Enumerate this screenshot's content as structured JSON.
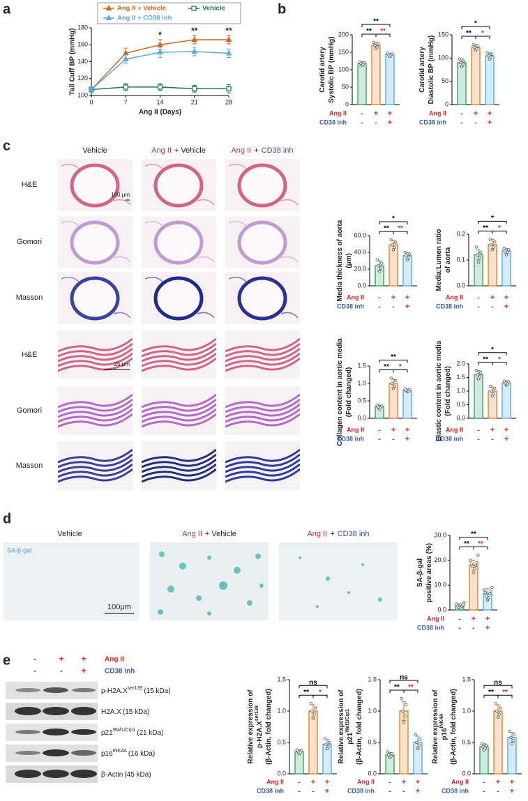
{
  "panels": [
    "a",
    "b",
    "c",
    "d",
    "e"
  ],
  "histology": {
    "columns": [
      [
        {
          "text": "Vehicle"
        }
      ],
      [
        {
          "text": "Ang II",
          "color": "#c0303a"
        },
        {
          "text": "+ Vehicle"
        }
      ],
      [
        {
          "text": "Ang II",
          "color": "#c0303a"
        },
        {
          "text": "+"
        },
        {
          "text": "CD38 inh",
          "color": "#3b4fa8"
        }
      ]
    ],
    "rows": [
      "H&E",
      "Gomori",
      "Masson",
      "H&E",
      "Gomori",
      "Masson"
    ],
    "scale_bars": [
      "100 μm",
      "25 μm"
    ]
  },
  "sa_gal": {
    "columns": [
      [
        {
          "text": "Vehicle"
        }
      ],
      [
        {
          "text": "Ang II",
          "color": "#c0303a"
        },
        {
          "text": "+ Vehicle"
        }
      ],
      [
        {
          "text": "Ang II",
          "color": "#c0303a"
        },
        {
          "text": "+"
        },
        {
          "text": "CD38 inh",
          "color": "#3b4fa8"
        }
      ]
    ],
    "label": "SA-β-gal",
    "scale_bar": "100μm"
  },
  "western": {
    "conditions": [
      {
        "name": "Ang II",
        "color": "#d7262b",
        "signs": [
          "-",
          "+",
          "+"
        ]
      },
      {
        "name": "CD38 inh",
        "color": "#3b5ba8",
        "signs": [
          "-",
          "-",
          "+"
        ]
      }
    ],
    "bands": [
      {
        "name": "p-H2A.X",
        "sup": "ser139",
        "size": "(15 kDa)"
      },
      {
        "name": "H2A.X",
        "size": "(15 kDa)"
      },
      {
        "name": "p21",
        "sup": "Waf1/Cip1",
        "size": "(21 kDa)"
      },
      {
        "name": "p16",
        "sup": "INK4A",
        "size": "(16 kDa)"
      },
      {
        "name": "β-Actin",
        "size": "(45 kDa)"
      }
    ]
  },
  "chart_data": [
    {
      "type": "line",
      "xlabel": "Ang II (Days)",
      "ylabel": "Tail Cuff BP (mmHg)",
      "x": [
        0,
        7,
        14,
        21,
        28
      ],
      "xlim": [
        0,
        28
      ],
      "xticks": [
        0,
        7,
        14,
        21,
        28
      ],
      "ylim": [
        100,
        180
      ],
      "yticks": [
        100,
        120,
        140,
        160,
        180
      ],
      "series": [
        {
          "name": "Ang II + Vehicle",
          "color": "#d9661f",
          "marker": "triangle",
          "values": [
            107,
            150,
            160,
            166,
            166
          ],
          "errors": [
            3,
            6,
            6,
            5,
            5
          ]
        },
        {
          "name": "Vehicle",
          "color": "#1e7a4f",
          "marker": "square",
          "values": [
            107,
            110,
            110,
            108,
            108
          ],
          "errors": [
            3,
            4,
            4,
            4,
            5
          ]
        },
        {
          "name": "Ang II + CD38 inh",
          "color": "#5aa9e6",
          "marker": "triangle",
          "values": [
            107,
            143,
            151,
            152,
            150
          ],
          "errors": [
            3,
            5,
            6,
            5,
            5
          ]
        }
      ],
      "annotations": [
        {
          "x": 14,
          "text": "*"
        },
        {
          "x": 21,
          "text": "**"
        },
        {
          "x": 28,
          "text": "**"
        }
      ]
    },
    {
      "type": "bar",
      "ylabel": [
        {
          "text": "Carotid artery"
        },
        {
          "text": "Systolic BP (mmHg)"
        }
      ],
      "ylim": [
        0,
        200
      ],
      "yticks": [
        0,
        50,
        100,
        150,
        200
      ],
      "colors": [
        "#2e9e5b",
        "#e07b20",
        "#4aa3e8"
      ],
      "values": [
        117,
        170,
        143
      ],
      "errors": [
        6,
        8,
        4
      ],
      "points": [
        [
          112,
          115,
          118,
          120,
          122
        ],
        [
          160,
          165,
          170,
          175,
          178
        ],
        [
          138,
          141,
          143,
          145,
          147
        ]
      ],
      "significance": [
        {
          "label": "**",
          "color": "#000"
        },
        {
          "label": "**",
          "color": "#d7262b"
        },
        {
          "label": "**",
          "color": "#000"
        }
      ],
      "conditions": [
        {
          "name": "Ang II",
          "color": "#d7262b",
          "signs": [
            "-",
            "+",
            "+"
          ]
        },
        {
          "name": "CD38 inh",
          "color": "#3b5ba8",
          "signs": [
            "-",
            "-",
            "+"
          ]
        }
      ]
    },
    {
      "type": "bar",
      "ylabel": [
        {
          "text": "Carotid artery"
        },
        {
          "text": "Diastolic BP (mmHg)"
        }
      ],
      "ylim": [
        0,
        150
      ],
      "yticks": [
        0,
        50,
        100,
        150
      ],
      "colors": [
        "#2e9e5b",
        "#e07b20",
        "#4aa3e8"
      ],
      "values": [
        90,
        123,
        105
      ],
      "errors": [
        8,
        6,
        7
      ],
      "points": [
        [
          82,
          87,
          90,
          93,
          98
        ],
        [
          116,
          120,
          123,
          126,
          129
        ],
        [
          98,
          102,
          105,
          108,
          111
        ]
      ],
      "significance": [
        {
          "label": "**",
          "color": "#000"
        },
        {
          "label": "*",
          "color": "#d7262b"
        },
        {
          "label": "*",
          "color": "#000"
        }
      ],
      "conditions": [
        {
          "name": "Ang II",
          "color": "#d7262b",
          "signs": [
            "-",
            "+",
            "+"
          ]
        },
        {
          "name": "CD38 inh",
          "color": "#3b5ba8",
          "signs": [
            "-",
            "-",
            "+"
          ]
        }
      ]
    },
    {
      "type": "bar",
      "ylabel": [
        {
          "text": "Media thickness of aorta"
        },
        {
          "text": "(μm)"
        }
      ],
      "ylim": [
        0,
        60
      ],
      "yticks": [
        {
          "value": 0,
          "label": "0.0"
        },
        {
          "value": 20,
          "label": "20.0"
        },
        {
          "value": 40,
          "label": "40.0"
        },
        {
          "value": 60,
          "label": "60.0"
        }
      ],
      "colors": [
        "#2e9e5b",
        "#e07b20",
        "#4aa3e8"
      ],
      "values": [
        24,
        49,
        36
      ],
      "errors": [
        6,
        5,
        4
      ],
      "points": [
        [
          17,
          21,
          24,
          27,
          31
        ],
        [
          43,
          46,
          49,
          52,
          55
        ],
        [
          31,
          34,
          36,
          38,
          40
        ]
      ],
      "significance": [
        {
          "label": "**",
          "color": "#000"
        },
        {
          "label": "**",
          "color": "#d7262b"
        },
        {
          "label": "*",
          "color": "#000"
        }
      ],
      "conditions": [
        {
          "name": "Ang II",
          "color": "#d7262b",
          "signs": [
            "-",
            "+",
            "+"
          ]
        },
        {
          "name": "CD38 inh",
          "color": "#3b5ba8",
          "signs": [
            "-",
            "-",
            "+"
          ]
        }
      ]
    },
    {
      "type": "bar",
      "ylabel": [
        {
          "text": "Media:Lumen ratio"
        },
        {
          "text": "of aorta"
        }
      ],
      "ylim": [
        0,
        0.2
      ],
      "yticks": [
        {
          "value": 0,
          "label": "0.0"
        },
        0.1,
        0.2
      ],
      "colors": [
        "#2e9e5b",
        "#e07b20",
        "#4aa3e8"
      ],
      "values": [
        0.12,
        0.16,
        0.135
      ],
      "errors": [
        0.02,
        0.02,
        0.01
      ],
      "points": [
        [
          0.09,
          0.11,
          0.12,
          0.13,
          0.15
        ],
        [
          0.14,
          0.15,
          0.16,
          0.17,
          0.18
        ],
        [
          0.12,
          0.13,
          0.135,
          0.14,
          0.145
        ]
      ],
      "significance": [
        {
          "label": "**",
          "color": "#000"
        },
        {
          "label": "*",
          "color": "#d7262b"
        },
        {
          "label": "*",
          "color": "#000"
        }
      ],
      "conditions": [
        {
          "name": "Ang II",
          "color": "#d7262b",
          "signs": [
            "-",
            "+",
            "+"
          ]
        },
        {
          "name": "CD38 inh",
          "color": "#3b5ba8",
          "signs": [
            "-",
            "-",
            "+"
          ]
        }
      ]
    },
    {
      "type": "bar",
      "ylabel": [
        {
          "text": "Collagen content in aortic media"
        },
        {
          "text": "(Fold changed)"
        }
      ],
      "ylim": [
        0,
        1.5
      ],
      "yticks": [
        {
          "value": 0,
          "label": "0.0"
        },
        0.5,
        {
          "value": 1,
          "label": "1.0"
        },
        1.5
      ],
      "colors": [
        "#2e9e5b",
        "#e07b20",
        "#4aa3e8"
      ],
      "values": [
        0.33,
        1.0,
        0.8
      ],
      "errors": [
        0.05,
        0.12,
        0.04
      ],
      "points": [
        [
          0.27,
          0.3,
          0.33,
          0.35,
          0.38
        ],
        [
          0.85,
          0.92,
          1.0,
          1.08,
          1.15
        ],
        [
          0.76,
          0.78,
          0.8,
          0.82,
          0.84
        ]
      ],
      "significance": [
        {
          "label": "**",
          "color": "#000"
        },
        {
          "label": "*",
          "color": "#d7262b"
        },
        {
          "label": "**",
          "color": "#000"
        }
      ],
      "conditions": [
        {
          "name": "Ang II",
          "color": "#d7262b",
          "signs": [
            "-",
            "+",
            "+"
          ]
        },
        {
          "name": "CD38 inh",
          "color": "#3b5ba8",
          "signs": [
            "-",
            "-",
            "+"
          ]
        }
      ]
    },
    {
      "type": "bar",
      "ylabel": [
        {
          "text": "Elastic content in aortic media"
        },
        {
          "text": "(Fold changed)"
        }
      ],
      "ylim": [
        0,
        2
      ],
      "yticks": [
        {
          "value": 0,
          "label": "0.0"
        },
        0.5,
        {
          "value": 1,
          "label": "1.0"
        },
        1.5,
        {
          "value": 2,
          "label": "2.0"
        }
      ],
      "colors": [
        "#2e9e5b",
        "#e07b20",
        "#4aa3e8"
      ],
      "values": [
        1.6,
        1.0,
        1.3
      ],
      "errors": [
        0.15,
        0.15,
        0.08
      ],
      "points": [
        [
          1.45,
          1.52,
          1.6,
          1.68,
          1.75
        ],
        [
          0.82,
          0.9,
          1.0,
          1.1,
          1.18
        ],
        [
          1.22,
          1.26,
          1.3,
          1.34,
          1.37
        ]
      ],
      "significance": [
        {
          "label": "**",
          "color": "#000"
        },
        {
          "label": "*",
          "color": "#d7262b"
        },
        {
          "label": "*",
          "color": "#000"
        }
      ],
      "conditions": [
        {
          "name": "Ang II",
          "color": "#d7262b",
          "signs": [
            "-",
            "+",
            "+"
          ]
        },
        {
          "name": "CD38 inh",
          "color": "#3b5ba8",
          "signs": [
            "-",
            "-",
            "+"
          ]
        }
      ]
    },
    {
      "type": "bar",
      "ylabel": [
        {
          "text": "SA-β-gal"
        },
        {
          "text": "positive areas (%)"
        }
      ],
      "ylim": [
        0,
        30
      ],
      "yticks": [
        {
          "value": 0,
          "label": "0.0"
        },
        {
          "value": 10,
          "label": "10.0"
        },
        {
          "value": 20,
          "label": "20.0"
        },
        {
          "value": 30,
          "label": "30.0"
        }
      ],
      "colors": [
        "#2e9e5b",
        "#e07b20",
        "#4aa3e8"
      ],
      "values": [
        1.5,
        18,
        6.5
      ],
      "errors": [
        1,
        2,
        2
      ],
      "points": [
        [
          0.5,
          0.8,
          1.2,
          1.5,
          1.8,
          2.1,
          2.4,
          3
        ],
        [
          15,
          16.5,
          17.5,
          18,
          18.5,
          19,
          20,
          22
        ],
        [
          4,
          5,
          5.5,
          6.5,
          7,
          7.5,
          8,
          9
        ]
      ],
      "significance": [
        {
          "label": "**",
          "color": "#000"
        },
        {
          "label": "**",
          "color": "#d7262b"
        },
        {
          "label": "**",
          "color": "#000"
        }
      ],
      "conditions": [
        {
          "name": "Ang II",
          "color": "#d7262b",
          "signs": [
            "-",
            "+",
            "+"
          ]
        },
        {
          "name": "CD38 inh",
          "color": "#3b5ba8",
          "signs": [
            "-",
            "-",
            "+"
          ]
        }
      ]
    },
    {
      "type": "bar",
      "ylabel": [
        {
          "text": "Relative expression of"
        },
        {
          "text": "p-H2A.X",
          "sup": "ser139"
        },
        {
          "text": "(β-Actin, fold changed)"
        }
      ],
      "ylim": [
        0,
        1.5
      ],
      "yticks": [
        {
          "value": 0,
          "label": "0.0"
        },
        0.5,
        {
          "value": 1,
          "label": "1.0"
        },
        1.5
      ],
      "colors": [
        "#2e9e5b",
        "#e07b20",
        "#4aa3e8"
      ],
      "values": [
        0.35,
        1.0,
        0.47
      ],
      "errors": [
        0.03,
        0.1,
        0.08
      ],
      "points": [
        [
          0.32,
          0.34,
          0.35,
          0.37,
          0.38
        ],
        [
          0.88,
          0.95,
          1.0,
          1.05,
          1.12
        ],
        [
          0.4,
          0.43,
          0.47,
          0.5,
          0.56
        ]
      ],
      "significance": [
        {
          "label": "**",
          "color": "#000"
        },
        {
          "label": "*",
          "color": "#d7262b"
        },
        {
          "label": "ns",
          "color": "#000"
        }
      ],
      "conditions": [
        {
          "name": "Ang II",
          "color": "#d7262b",
          "signs": [
            "-",
            "+",
            "+"
          ]
        },
        {
          "name": "CD38 inh",
          "color": "#3b5ba8",
          "signs": [
            "-",
            "-",
            "+"
          ]
        }
      ]
    },
    {
      "type": "bar",
      "ylabel": [
        {
          "text": "Relative expression of"
        },
        {
          "text": "p21",
          "sup": "Waf1/Cip1"
        },
        {
          "text": "(β-Actin, fold changed)"
        }
      ],
      "ylim": [
        0,
        1.5
      ],
      "yticks": [
        {
          "value": 0,
          "label": "0.0"
        },
        0.5,
        {
          "value": 1,
          "label": "1.0"
        },
        1.5
      ],
      "colors": [
        "#2e9e5b",
        "#e07b20",
        "#4aa3e8"
      ],
      "values": [
        0.3,
        1.0,
        0.5
      ],
      "errors": [
        0.04,
        0.15,
        0.1
      ],
      "points": [
        [
          0.26,
          0.28,
          0.3,
          0.32,
          0.35
        ],
        [
          0.82,
          0.92,
          1.0,
          1.1,
          1.2
        ],
        [
          0.4,
          0.45,
          0.5,
          0.55,
          0.62
        ]
      ],
      "significance": [
        {
          "label": "**",
          "color": "#000"
        },
        {
          "label": "**",
          "color": "#d7262b"
        },
        {
          "label": "ns",
          "color": "#000"
        }
      ],
      "conditions": [
        {
          "name": "Ang II",
          "color": "#d7262b",
          "signs": [
            "-",
            "+",
            "+"
          ]
        },
        {
          "name": "CD38 inh",
          "color": "#3b5ba8",
          "signs": [
            "-",
            "-",
            "+"
          ]
        }
      ]
    },
    {
      "type": "bar",
      "ylabel": [
        {
          "text": "Relative expression of"
        },
        {
          "text": "p16",
          "sup": "INK4A"
        },
        {
          "text": "(β-Actin, fold changed)"
        }
      ],
      "ylim": [
        0,
        1.5
      ],
      "yticks": [
        {
          "value": 0,
          "label": "0.0"
        },
        0.5,
        {
          "value": 1,
          "label": "1.0"
        },
        1.5
      ],
      "colors": [
        "#2e9e5b",
        "#e07b20",
        "#4aa3e8"
      ],
      "values": [
        0.43,
        1.0,
        0.58
      ],
      "errors": [
        0.05,
        0.1,
        0.08
      ],
      "points": [
        [
          0.38,
          0.41,
          0.43,
          0.45,
          0.48
        ],
        [
          0.9,
          0.95,
          1.0,
          1.05,
          1.12
        ],
        [
          0.48,
          0.53,
          0.58,
          0.62,
          0.68
        ]
      ],
      "significance": [
        {
          "label": "**",
          "color": "#000"
        },
        {
          "label": "**",
          "color": "#d7262b"
        },
        {
          "label": "ns",
          "color": "#000"
        }
      ],
      "conditions": [
        {
          "name": "Ang II",
          "color": "#d7262b",
          "signs": [
            "-",
            "+",
            "+"
          ]
        },
        {
          "name": "CD38 inh",
          "color": "#3b5ba8",
          "signs": [
            "-",
            "-",
            "+"
          ]
        }
      ]
    }
  ]
}
